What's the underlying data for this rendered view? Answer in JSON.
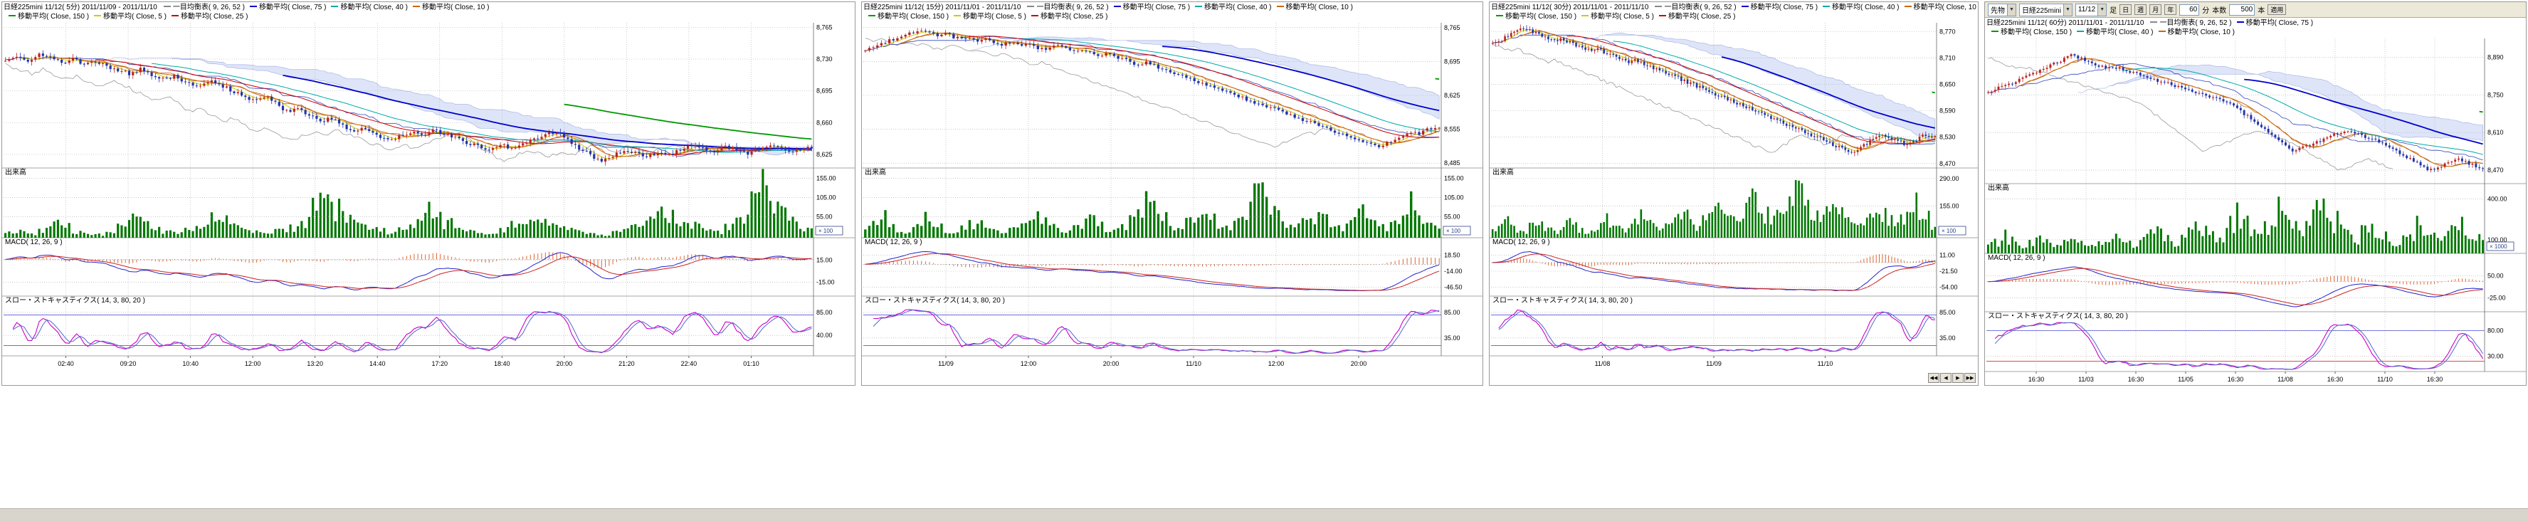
{
  "sections": {
    "volume_label": "出来高",
    "macd_label": "MACD( 12, 26, 9 )",
    "stoch_label": "スロー・ストキャスティクス( 14, 3, 80, 20 )"
  },
  "toolbar": {
    "market": "先物",
    "symbol": "日経225mini",
    "contract": "11/12",
    "ashi_label": "足",
    "period_buttons": [
      "日",
      "週",
      "月",
      "年"
    ],
    "minutes_value": "60",
    "minutes_unit": "分",
    "bars_label": "本数",
    "bars_value": "500",
    "bars_unit": "本",
    "apply_label": "適用"
  },
  "colors": {
    "up_candle": "#bb2222",
    "down_candle": "#2233aa",
    "volume": "#007700",
    "cloud": "rgba(160,180,235,0.35)",
    "cloud_edge": "rgba(110,130,210,0.6)",
    "chikou": "#999999",
    "tenkan": "#bb6622",
    "kijun": "#3344bb",
    "macd": "#2222cc",
    "macd_signal": "#cc2222",
    "macd_hist": "#dd6633",
    "stoch_k": "#cc00cc",
    "stoch_d": "#5566cc",
    "ref_high": "#5555dd",
    "ref_low": "#dd3333",
    "grid": "#aaaaaa",
    "axis": "#666666"
  },
  "panels": [
    {
      "title": "日経225mini 11/12( 5分)  2011/11/09 - 2011/11/10",
      "legend1": [
        {
          "c": "#888888",
          "t": "一目均衡表( 9, 26, 52 )"
        },
        {
          "c": "#0000cc",
          "t": "移動平均( Close, 75 )"
        },
        {
          "c": "#00aaaa",
          "t": "移動平均( Close, 40 )"
        },
        {
          "c": "#cc6600",
          "t": "移動平均( Close, 10 )"
        }
      ],
      "legend2": [
        {
          "c": "#009900",
          "t": "移動平均( Close, 150 )"
        },
        {
          "c": "#cccc00",
          "t": "移動平均( Close, 5 )"
        },
        {
          "c": "#cc0000",
          "t": "移動平均( Close, 25 )"
        }
      ],
      "price_range": [
        8770,
        8610
      ],
      "price_ticks": [
        {
          "v": 8765,
          "label": "8,765"
        },
        {
          "v": 8730,
          "label": "8,730"
        },
        {
          "v": 8695,
          "label": "8,695"
        },
        {
          "v": 8660,
          "label": "8,660"
        },
        {
          "v": 8625,
          "label": "8,625"
        }
      ],
      "closes": [
        8730,
        8734,
        8728,
        8735,
        8731,
        8726,
        8730,
        8724,
        8727,
        8722,
        8718,
        8714,
        8719,
        8712,
        8708,
        8711,
        8704,
        8700,
        8706,
        8702,
        8696,
        8690,
        8685,
        8689,
        8681,
        8672,
        8676,
        8668,
        8661,
        8665,
        8657,
        8650,
        8654,
        8647,
        8641,
        8645,
        8650,
        8646,
        8652,
        8648,
        8643,
        8638,
        8634,
        8630,
        8636,
        8632,
        8638,
        8642,
        8647,
        8650,
        8640,
        8632,
        8624,
        8618,
        8624,
        8630,
        8626,
        8622,
        8628,
        8624,
        8630,
        8636,
        8632,
        8628,
        8634,
        8630,
        8626,
        8632,
        8636,
        8631,
        8627,
        8632
      ],
      "volumes": [
        12,
        18,
        9,
        22,
        35,
        28,
        14,
        10,
        8,
        15,
        30,
        55,
        40,
        25,
        18,
        12,
        20,
        35,
        60,
        45,
        30,
        22,
        15,
        10,
        18,
        25,
        40,
        90,
        120,
        75,
        50,
        35,
        28,
        20,
        15,
        25,
        45,
        70,
        55,
        40,
        30,
        20,
        15,
        10,
        20,
        35,
        35,
        50,
        40,
        30,
        20,
        15,
        10,
        8,
        15,
        25,
        45,
        60,
        80,
        55,
        40,
        30,
        22,
        15,
        35,
        55,
        100,
        140,
        90,
        60,
        40,
        30
      ],
      "vol_ticks": [
        {
          "v": 155,
          "label": "155.00"
        },
        {
          "v": 105,
          "label": "105.00"
        },
        {
          "v": 55,
          "label": "55.00"
        }
      ],
      "vol_max": 160,
      "vol_badge": "× 100",
      "macd_ticks": [
        "15.00",
        "-15.00"
      ],
      "stoch_ticks": [
        {
          "v": 85,
          "label": "85.00"
        },
        {
          "v": 40,
          "label": "40.00"
        }
      ],
      "time_labels": [
        "02:40",
        "09:20",
        "10:40",
        "12:00",
        "13:20",
        "14:40",
        "17:20",
        "18:40",
        "20:00",
        "21:20",
        "22:40",
        "01:10"
      ],
      "mas": [
        {
          "n": 5,
          "c": "#cccc00"
        },
        {
          "n": 10,
          "c": "#cc6600"
        },
        {
          "n": 25,
          "c": "#cc0000"
        },
        {
          "n": 40,
          "c": "#00aaaa"
        },
        {
          "n": 75,
          "c": "#0000cc"
        },
        {
          "n": 150,
          "c": "#009900"
        }
      ],
      "wick": 5,
      "upsample": 3
    },
    {
      "title": "日経225mini 11/12( 15分)  2011/11/01 - 2011/11/10",
      "legend1": [
        {
          "c": "#888888",
          "t": "一目均衡表( 9, 26, 52 )"
        },
        {
          "c": "#0000cc",
          "t": "移動平均( Close, 75 )"
        },
        {
          "c": "#00aaaa",
          "t": "移動平均( Close, 40 )"
        },
        {
          "c": "#cc6600",
          "t": "移動平均( Close, 10 )"
        }
      ],
      "legend2": [
        {
          "c": "#009900",
          "t": "移動平均( Close, 150 )"
        },
        {
          "c": "#cccc00",
          "t": "移動平均( Close, 5 )"
        },
        {
          "c": "#cc0000",
          "t": "移動平均( Close, 25 )"
        }
      ],
      "price_range": [
        8775,
        8475
      ],
      "price_ticks": [
        {
          "v": 8765,
          "label": "8,765"
        },
        {
          "v": 8695,
          "label": "8,695"
        },
        {
          "v": 8625,
          "label": "8,625"
        },
        {
          "v": 8555,
          "label": "8,555"
        },
        {
          "v": 8485,
          "label": "8,485"
        }
      ],
      "closes": [
        8720,
        8726,
        8732,
        8738,
        8744,
        8750,
        8756,
        8760,
        8754,
        8748,
        8752,
        8746,
        8740,
        8744,
        8738,
        8742,
        8736,
        8730,
        8734,
        8728,
        8732,
        8726,
        8720,
        8724,
        8728,
        8722,
        8716,
        8720,
        8714,
        8708,
        8712,
        8706,
        8700,
        8694,
        8688,
        8692,
        8686,
        8680,
        8674,
        8668,
        8662,
        8656,
        8650,
        8644,
        8638,
        8632,
        8626,
        8620,
        8614,
        8608,
        8602,
        8596,
        8590,
        8584,
        8578,
        8572,
        8566,
        8560,
        8554,
        8548,
        8542,
        8536,
        8530,
        8524,
        8518,
        8526,
        8534,
        8542,
        8550,
        8546,
        8554,
        8560
      ],
      "volumes": [
        25,
        40,
        60,
        35,
        20,
        15,
        30,
        50,
        45,
        30,
        20,
        15,
        25,
        35,
        35,
        25,
        18,
        12,
        20,
        30,
        45,
        60,
        40,
        28,
        20,
        15,
        25,
        40,
        55,
        35,
        25,
        18,
        30,
        45,
        65,
        90,
        70,
        50,
        35,
        25,
        40,
        60,
        80,
        55,
        40,
        30,
        45,
        70,
        110,
        140,
        95,
        65,
        45,
        35,
        55,
        80,
        60,
        45,
        35,
        28,
        40,
        55,
        75,
        50,
        38,
        30,
        45,
        65,
        90,
        60,
        45,
        35
      ],
      "vol_ticks": [
        {
          "v": 155,
          "label": "155.00"
        },
        {
          "v": 105,
          "label": "105.00"
        },
        {
          "v": 55,
          "label": "55.00"
        }
      ],
      "vol_max": 160,
      "vol_badge": "× 100",
      "macd_ticks": [
        "18.50",
        "-14.00",
        "-46.50"
      ],
      "stoch_ticks": [
        {
          "v": 85,
          "label": "85.00"
        },
        {
          "v": 35,
          "label": "35.00"
        }
      ],
      "time_labels": [
        "11/09",
        "12:00",
        "20:00",
        "11/10",
        "12:00",
        "20:00"
      ],
      "mas": [
        {
          "n": 5,
          "c": "#cccc00"
        },
        {
          "n": 10,
          "c": "#cc6600"
        },
        {
          "n": 25,
          "c": "#cc0000"
        },
        {
          "n": 40,
          "c": "#00aaaa"
        },
        {
          "n": 75,
          "c": "#0000cc"
        },
        {
          "n": 150,
          "c": "#009900"
        }
      ],
      "wick": 8,
      "upsample": 2
    },
    {
      "title": "日経225mini 11/12( 30分)  2011/11/01 - 2011/11/10",
      "legend1": [
        {
          "c": "#888888",
          "t": "一目均衡表( 9, 26, 52 )"
        },
        {
          "c": "#0000cc",
          "t": "移動平均( Close, 75 )"
        },
        {
          "c": "#00aaaa",
          "t": "移動平均( Close, 40 )"
        },
        {
          "c": "#cc6600",
          "t": "移動平均( Close, 10 )"
        }
      ],
      "legend2": [
        {
          "c": "#009900",
          "t": "移動平均( Close, 150 )"
        },
        {
          "c": "#cccc00",
          "t": "移動平均( Close, 5 )"
        },
        {
          "c": "#cc0000",
          "t": "移動平均( Close, 25 )"
        }
      ],
      "price_range": [
        8790,
        8460
      ],
      "price_ticks": [
        {
          "v": 8770,
          "label": "8,770"
        },
        {
          "v": 8710,
          "label": "8,710"
        },
        {
          "v": 8650,
          "label": "8,650"
        },
        {
          "v": 8590,
          "label": "8,590"
        },
        {
          "v": 8530,
          "label": "8,530"
        },
        {
          "v": 8470,
          "label": "8,470"
        }
      ],
      "closes": [
        8740,
        8748,
        8756,
        8764,
        8772,
        8778,
        8772,
        8766,
        8760,
        8754,
        8748,
        8754,
        8748,
        8742,
        8736,
        8730,
        8724,
        8730,
        8724,
        8718,
        8712,
        8706,
        8700,
        8706,
        8700,
        8694,
        8688,
        8682,
        8676,
        8670,
        8664,
        8658,
        8652,
        8646,
        8640,
        8634,
        8628,
        8622,
        8616,
        8610,
        8604,
        8598,
        8592,
        8586,
        8580,
        8574,
        8568,
        8562,
        8556,
        8550,
        8544,
        8538,
        8532,
        8526,
        8520,
        8514,
        8508,
        8502,
        8496,
        8504,
        8512,
        8520,
        8528,
        8536,
        8530,
        8524,
        8518,
        8512,
        8520,
        8528,
        8536,
        8530
      ],
      "volumes": [
        45,
        70,
        100,
        65,
        40,
        30,
        55,
        85,
        60,
        40,
        30,
        45,
        70,
        55,
        35,
        25,
        40,
        60,
        90,
        65,
        45,
        35,
        55,
        80,
        120,
        90,
        60,
        45,
        70,
        100,
        140,
        110,
        80,
        60,
        90,
        130,
        180,
        140,
        100,
        75,
        110,
        150,
        200,
        160,
        120,
        90,
        130,
        170,
        230,
        280,
        200,
        150,
        110,
        85,
        120,
        160,
        130,
        95,
        70,
        55,
        80,
        110,
        150,
        110,
        80,
        60,
        90,
        120,
        170,
        130,
        95,
        70
      ],
      "vol_ticks": [
        {
          "v": 290,
          "label": "290.00"
        },
        {
          "v": 155,
          "label": "155.00"
        }
      ],
      "vol_max": 300,
      "vol_badge": "× 100",
      "macd_ticks": [
        "11.00",
        "-21.50",
        "-54.00"
      ],
      "stoch_ticks": [
        {
          "v": 85,
          "label": "85.00"
        },
        {
          "v": 35,
          "label": "35.00"
        }
      ],
      "time_labels": [
        "11/08",
        "11/09",
        "11/10"
      ],
      "mas": [
        {
          "n": 5,
          "c": "#cccc00"
        },
        {
          "n": 10,
          "c": "#cc6600"
        },
        {
          "n": 25,
          "c": "#cc0000"
        },
        {
          "n": 40,
          "c": "#00aaaa"
        },
        {
          "n": 75,
          "c": "#0000cc"
        },
        {
          "n": 150,
          "c": "#009900"
        }
      ],
      "wick": 10,
      "upsample": 2,
      "scroll_buttons": [
        "◀◀",
        "◀",
        "▶",
        "▶▶"
      ]
    },
    {
      "title": "日経225mini 11/12( 60分)  2011/11/01 - 2011/11/10",
      "legend1": [
        {
          "c": "#888888",
          "t": "一目均衡表( 9, 26, 52 )"
        },
        {
          "c": "#0000cc",
          "t": "移動平均( Close, 75 )"
        }
      ],
      "legend2": [
        {
          "c": "#009900",
          "t": "移動平均( Close, 150 )"
        },
        {
          "c": "#00aaaa",
          "t": "移動平均( Close, 40 )"
        },
        {
          "c": "#cc6600",
          "t": "移動平均( Close, 10 )"
        }
      ],
      "price_range": [
        8960,
        8420
      ],
      "price_ticks": [
        {
          "v": 8890,
          "label": "8,890"
        },
        {
          "v": 8750,
          "label": "8,750"
        },
        {
          "v": 8610,
          "label": "8,610"
        },
        {
          "v": 8470,
          "label": "8,470"
        }
      ],
      "closes": [
        8760,
        8770,
        8780,
        8790,
        8800,
        8812,
        8824,
        8836,
        8848,
        8860,
        8872,
        8884,
        8896,
        8890,
        8880,
        8870,
        8860,
        8850,
        8856,
        8848,
        8840,
        8832,
        8824,
        8816,
        8808,
        8800,
        8792,
        8784,
        8776,
        8768,
        8760,
        8752,
        8744,
        8736,
        8728,
        8720,
        8700,
        8680,
        8660,
        8640,
        8620,
        8600,
        8580,
        8560,
        8540,
        8550,
        8560,
        8570,
        8580,
        8590,
        8600,
        8610,
        8620,
        8610,
        8600,
        8590,
        8580,
        8570,
        8555,
        8540,
        8525,
        8510,
        8495,
        8480,
        8470,
        8480,
        8490,
        8500,
        8510,
        8500,
        8490,
        8480
      ],
      "volumes": [
        60,
        90,
        130,
        95,
        70,
        55,
        80,
        120,
        90,
        65,
        50,
        75,
        110,
        85,
        60,
        45,
        70,
        100,
        150,
        110,
        80,
        60,
        90,
        130,
        180,
        140,
        100,
        75,
        110,
        160,
        220,
        170,
        120,
        90,
        140,
        200,
        280,
        210,
        150,
        110,
        170,
        240,
        330,
        260,
        190,
        140,
        210,
        290,
        400,
        310,
        230,
        170,
        130,
        100,
        150,
        210,
        170,
        125,
        95,
        70,
        110,
        150,
        210,
        160,
        115,
        85,
        130,
        180,
        250,
        190,
        140,
        105
      ],
      "vol_ticks": [
        {
          "v": 400,
          "label": "400.00"
        },
        {
          "v": 100,
          "label": "100.00"
        }
      ],
      "vol_max": 450,
      "vol_badge": "× 1000",
      "macd_ticks": [
        "50.00",
        "-25.00"
      ],
      "stoch_ticks": [
        {
          "v": 80,
          "label": "80.00"
        },
        {
          "v": 30,
          "label": "30.00"
        }
      ],
      "time_labels": [
        "16:30",
        "11/03",
        "16:30",
        "11/05",
        "16:30",
        "11/08",
        "16:30",
        "11/10",
        "16:30"
      ],
      "mas": [
        {
          "n": 10,
          "c": "#cc6600"
        },
        {
          "n": 40,
          "c": "#00aaaa"
        },
        {
          "n": 75,
          "c": "#0000cc"
        },
        {
          "n": 150,
          "c": "#009900"
        }
      ],
      "wick": 14,
      "upsample": 2,
      "has_toolbar": true
    }
  ]
}
